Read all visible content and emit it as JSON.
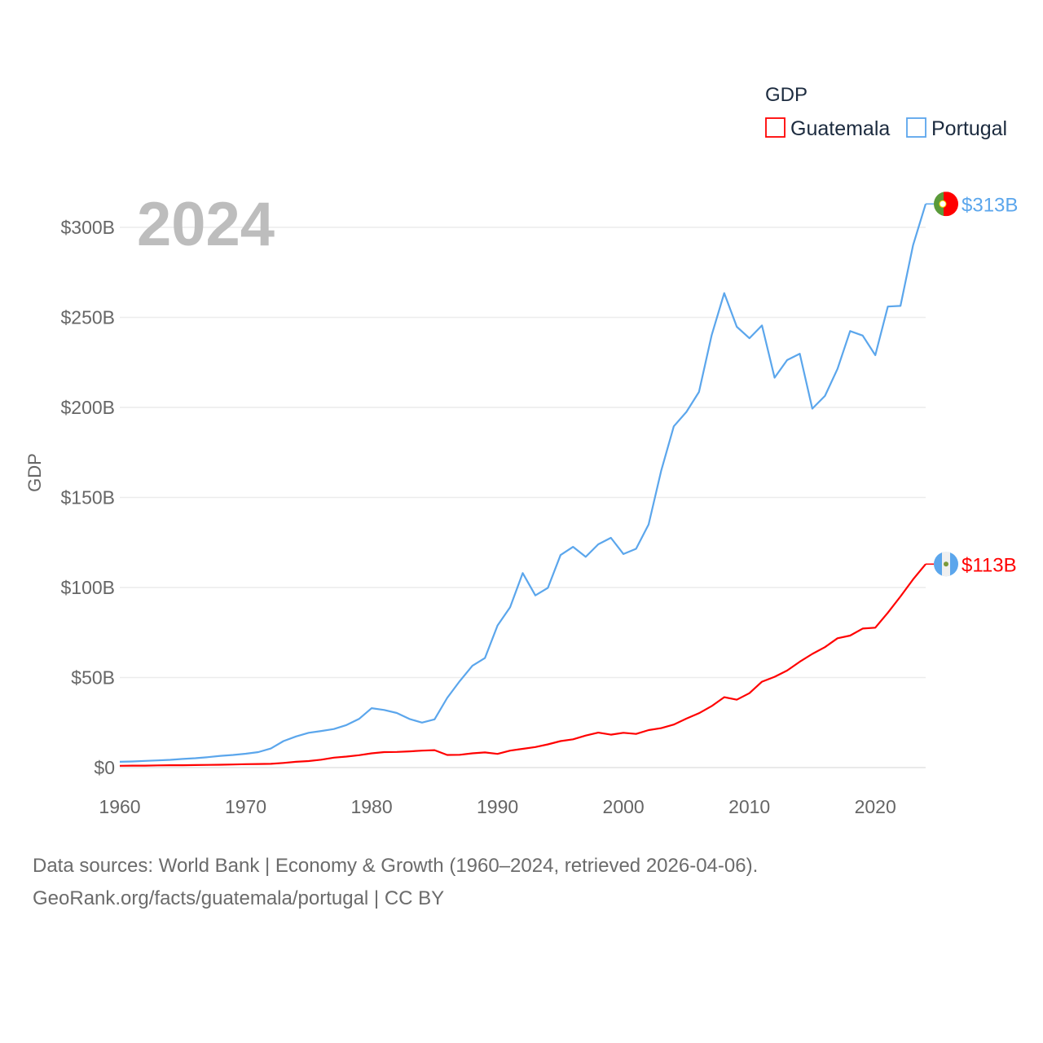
{
  "chart_data": {
    "type": "line",
    "title": "2024",
    "ylabel": "GDP",
    "xlabel": "",
    "xlim": [
      1960,
      2024
    ],
    "ylim": [
      0,
      313
    ],
    "unit": "billion USD",
    "grid": true,
    "legend_title": "GDP",
    "legend_position": "top-right",
    "x_ticks": [
      {
        "value": 1960,
        "label": "1960"
      },
      {
        "value": 1970,
        "label": "1970"
      },
      {
        "value": 1980,
        "label": "1980"
      },
      {
        "value": 1990,
        "label": "1990"
      },
      {
        "value": 2000,
        "label": "2000"
      },
      {
        "value": 2010,
        "label": "2010"
      },
      {
        "value": 2020,
        "label": "2020"
      }
    ],
    "y_ticks": [
      {
        "value": 0,
        "label": "$0"
      },
      {
        "value": 50,
        "label": "$50B"
      },
      {
        "value": 100,
        "label": "$100B"
      },
      {
        "value": 150,
        "label": "$150B"
      },
      {
        "value": 200,
        "label": "$200B"
      },
      {
        "value": 250,
        "label": "$250B"
      },
      {
        "value": 300,
        "label": "$300B"
      }
    ],
    "x": [
      1960,
      1961,
      1962,
      1963,
      1964,
      1965,
      1966,
      1967,
      1968,
      1969,
      1970,
      1971,
      1972,
      1973,
      1974,
      1975,
      1976,
      1977,
      1978,
      1979,
      1980,
      1981,
      1982,
      1983,
      1984,
      1985,
      1986,
      1987,
      1988,
      1989,
      1990,
      1991,
      1992,
      1993,
      1994,
      1995,
      1996,
      1997,
      1998,
      1999,
      2000,
      2001,
      2002,
      2003,
      2004,
      2005,
      2006,
      2007,
      2008,
      2009,
      2010,
      2011,
      2012,
      2013,
      2014,
      2015,
      2016,
      2017,
      2018,
      2019,
      2020,
      2021,
      2022,
      2023,
      2024
    ],
    "series": [
      {
        "name": "Guatemala",
        "color": "#ff0000",
        "end_label": "$113B",
        "flag": "guatemala-flag",
        "values": [
          1.0,
          1.1,
          1.1,
          1.2,
          1.3,
          1.3,
          1.4,
          1.5,
          1.6,
          1.7,
          1.9,
          2.0,
          2.1,
          2.6,
          3.2,
          3.6,
          4.4,
          5.5,
          6.1,
          6.9,
          7.9,
          8.6,
          8.7,
          9.0,
          9.4,
          9.7,
          7.0,
          7.1,
          7.9,
          8.4,
          7.6,
          9.4,
          10.4,
          11.4,
          12.9,
          14.7,
          15.7,
          17.8,
          19.4,
          18.3,
          19.3,
          18.7,
          20.8,
          21.9,
          23.9,
          27.2,
          30.2,
          34.1,
          39.1,
          37.7,
          41.3,
          47.7,
          50.4,
          53.9,
          58.8,
          63.1,
          66.9,
          71.8,
          73.3,
          77.2,
          77.7,
          86.0,
          95.0,
          104.5,
          113.0
        ]
      },
      {
        "name": "Portugal",
        "color": "#5ba6ec",
        "end_label": "$313B",
        "flag": "portugal-flag",
        "values": [
          3.2,
          3.4,
          3.7,
          4.0,
          4.3,
          4.8,
          5.2,
          5.8,
          6.5,
          7.0,
          7.7,
          8.6,
          10.6,
          14.7,
          17.3,
          19.3,
          20.3,
          21.4,
          23.6,
          27.0,
          33.0,
          32.0,
          30.3,
          27.0,
          25.0,
          26.8,
          38.7,
          48.0,
          56.5,
          60.8,
          78.9,
          89.0,
          108.0,
          95.6,
          99.8,
          118.0,
          122.6,
          117.0,
          124.0,
          127.6,
          118.6,
          121.5,
          135.0,
          165.0,
          189.5,
          197.5,
          208.6,
          240.0,
          263.5,
          244.8,
          238.4,
          245.5,
          216.5,
          226.3,
          229.8,
          199.3,
          206.4,
          221.4,
          242.4,
          239.9,
          229.0,
          256.0,
          256.4,
          290.0,
          313.0
        ]
      }
    ]
  },
  "footer": {
    "line1": "Data sources: World Bank | Economy & Growth (1960–2024, retrieved 2026-04-06).",
    "line2": "GeoRank.org/facts/guatemala/portugal | CC BY"
  }
}
